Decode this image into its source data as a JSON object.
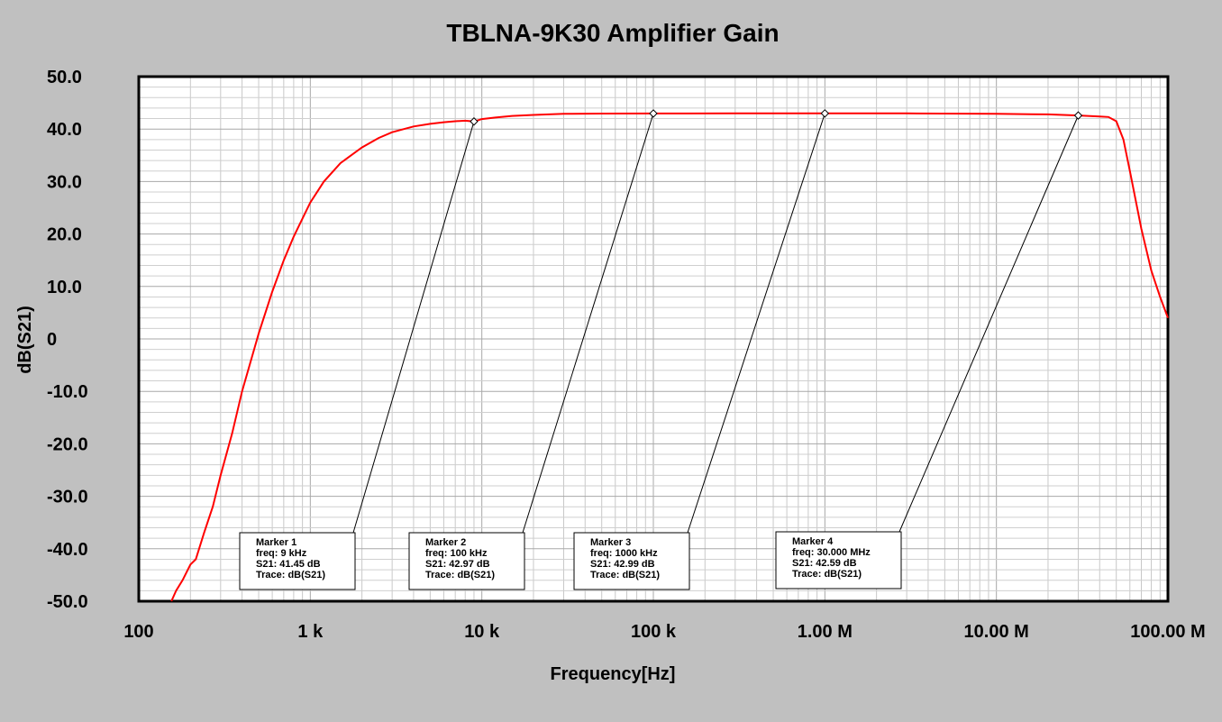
{
  "chart_data": {
    "type": "line",
    "title": "TBLNA-9K30 Amplifier Gain",
    "xlabel": "Frequency[Hz]",
    "ylabel": "dB(S21)",
    "x_scale": "log",
    "xlim": [
      100,
      100000000
    ],
    "ylim": [
      -50,
      50
    ],
    "grid": true,
    "x_tick_values": [
      100,
      1000,
      10000,
      100000,
      1000000,
      10000000,
      100000000
    ],
    "x_tick_labels": [
      "100",
      "1   k",
      "10  k",
      "100 k",
      "1.00 M",
      "10.00 M",
      "100.00 M"
    ],
    "y_tick_values": [
      50,
      40,
      30,
      20,
      10,
      0,
      -10,
      -20,
      -30,
      -40,
      -50
    ],
    "y_tick_labels": [
      "50.0",
      "40.0",
      "30.0",
      "20.0",
      "10.0",
      "0",
      "-10.0",
      "-20.0",
      "-30.0",
      "-40.0",
      "-50.0"
    ],
    "series": [
      {
        "color": "#ff0000",
        "x": [
          155,
          165,
          180,
          200,
          215,
          240,
          270,
          300,
          350,
          400,
          500,
          600,
          700,
          800,
          1000,
          1200,
          1500,
          2000,
          2500,
          3000,
          4000,
          5000,
          6000,
          7000,
          8000,
          9000,
          10000,
          12000,
          15000,
          20000,
          30000,
          50000,
          100000,
          300000,
          1000000,
          3000000,
          10000000,
          20000000,
          30000000,
          40000000,
          45000000,
          50000000,
          55000000,
          60000000,
          70000000,
          80000000,
          90000000,
          100000000
        ],
        "y": [
          -50,
          -48,
          -46,
          -43,
          -42,
          -37,
          -32,
          -26,
          -18,
          -10,
          1,
          9,
          15,
          19.5,
          26,
          30,
          33.5,
          36.5,
          38.3,
          39.4,
          40.5,
          41,
          41.3,
          41.5,
          41.6,
          41.45,
          41.9,
          42.2,
          42.5,
          42.7,
          42.9,
          42.95,
          42.97,
          42.99,
          42.99,
          42.99,
          42.9,
          42.8,
          42.59,
          42.4,
          42.3,
          41.5,
          38,
          32,
          21,
          13,
          8,
          4
        ]
      }
    ],
    "markers": [
      {
        "x": 9000,
        "y": 41.45,
        "title": "Marker 1",
        "freq": "freq: 9   kHz",
        "s21": "S21: 41.45  dB",
        "trace": "Trace: dB(S21)"
      },
      {
        "x": 100000,
        "y": 42.97,
        "title": "Marker 2",
        "freq": "freq: 100 kHz",
        "s21": "S21: 42.97  dB",
        "trace": "Trace: dB(S21)"
      },
      {
        "x": 1000000,
        "y": 42.99,
        "title": "Marker 3",
        "freq": "freq: 1000 kHz",
        "s21": "S21: 42.99  dB",
        "trace": "Trace: dB(S21)"
      },
      {
        "x": 30000000,
        "y": 42.59,
        "title": "Marker 4",
        "freq": "freq: 30.000 MHz",
        "s21": "S21: 42.59  dB",
        "trace": "Trace: dB(S21)"
      }
    ]
  }
}
